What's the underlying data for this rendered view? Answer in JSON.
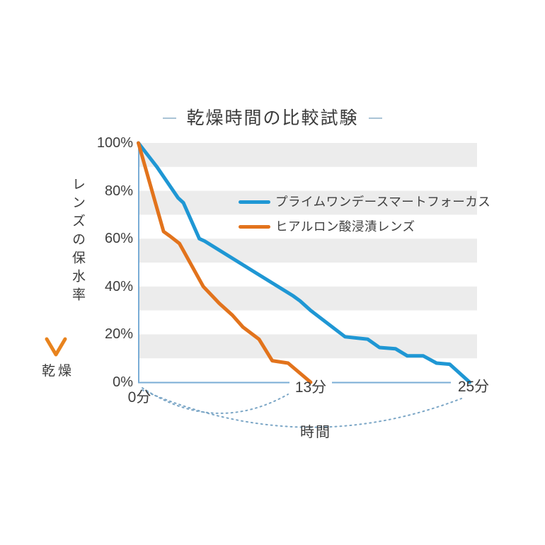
{
  "title": {
    "text": "乾燥時間の比較試験"
  },
  "side_annotation": {
    "vertical_label": "レンズの保水率",
    "arrow_end_label": "乾燥"
  },
  "legend": {
    "items": [
      {
        "label": "プライムワンデースマートフォーカス",
        "color": "#1f97d4"
      },
      {
        "label": "ヒアルロン酸浸漬レンズ",
        "color": "#e2731c"
      }
    ]
  },
  "chart_data": {
    "type": "line",
    "title": "乾燥時間の比較試験",
    "xlabel": "時間",
    "ylabel": "レンズの保水率",
    "x_unit": "分",
    "xlim": [
      0,
      25
    ],
    "ylim": [
      0,
      100
    ],
    "y_tick_labels": [
      "100%",
      "80%",
      "60%",
      "40%",
      "20%",
      "0%"
    ],
    "y_tick_values": [
      100,
      80,
      60,
      40,
      20,
      0
    ],
    "x_tick_labels": [
      "0分",
      "13分",
      "25分"
    ],
    "x_tick_values": [
      0,
      13,
      25
    ],
    "grid": "alternating light-gray horizontal bands every 10%",
    "legend_position": "upper right inside plot",
    "series": [
      {
        "name": "プライムワンデースマートフォーカス",
        "color": "#1f97d4",
        "points": [
          [
            0,
            100
          ],
          [
            1.4,
            90
          ],
          [
            3,
            77
          ],
          [
            3.4,
            75
          ],
          [
            4.6,
            60
          ],
          [
            5,
            59
          ],
          [
            8.2,
            48
          ],
          [
            11.7,
            36
          ],
          [
            12.2,
            34
          ],
          [
            13,
            30
          ],
          [
            15.6,
            19
          ],
          [
            17.3,
            18
          ],
          [
            18.2,
            14.5
          ],
          [
            19.4,
            14
          ],
          [
            20.3,
            11
          ],
          [
            21.5,
            11
          ],
          [
            22.5,
            8
          ],
          [
            23.5,
            7.5
          ],
          [
            25,
            0
          ]
        ]
      },
      {
        "name": "ヒアルロン酸浸漬レンズ",
        "color": "#e2731c",
        "points": [
          [
            0,
            100
          ],
          [
            1.9,
            63
          ],
          [
            2.4,
            61
          ],
          [
            3.1,
            58
          ],
          [
            4.9,
            40
          ],
          [
            6.1,
            33
          ],
          [
            7.1,
            28
          ],
          [
            7.9,
            23
          ],
          [
            9.1,
            18
          ],
          [
            10.1,
            9
          ],
          [
            11.3,
            8
          ],
          [
            13,
            0
          ]
        ]
      }
    ],
    "annotations": {
      "time_axis_label": "時間",
      "dotted_spans": [
        {
          "from": "0分",
          "to": "13分"
        },
        {
          "from": "0分",
          "to": "25分"
        }
      ]
    }
  },
  "colors": {
    "axis": "#7aadd6",
    "stripe": "#ececec",
    "title_dash": "#a9c3d6",
    "dotted_arc": "#7ba6c6",
    "arrow_top": "#2e9bd6",
    "arrow_bottom": "#e8831e",
    "text": "#3b3b3b"
  }
}
